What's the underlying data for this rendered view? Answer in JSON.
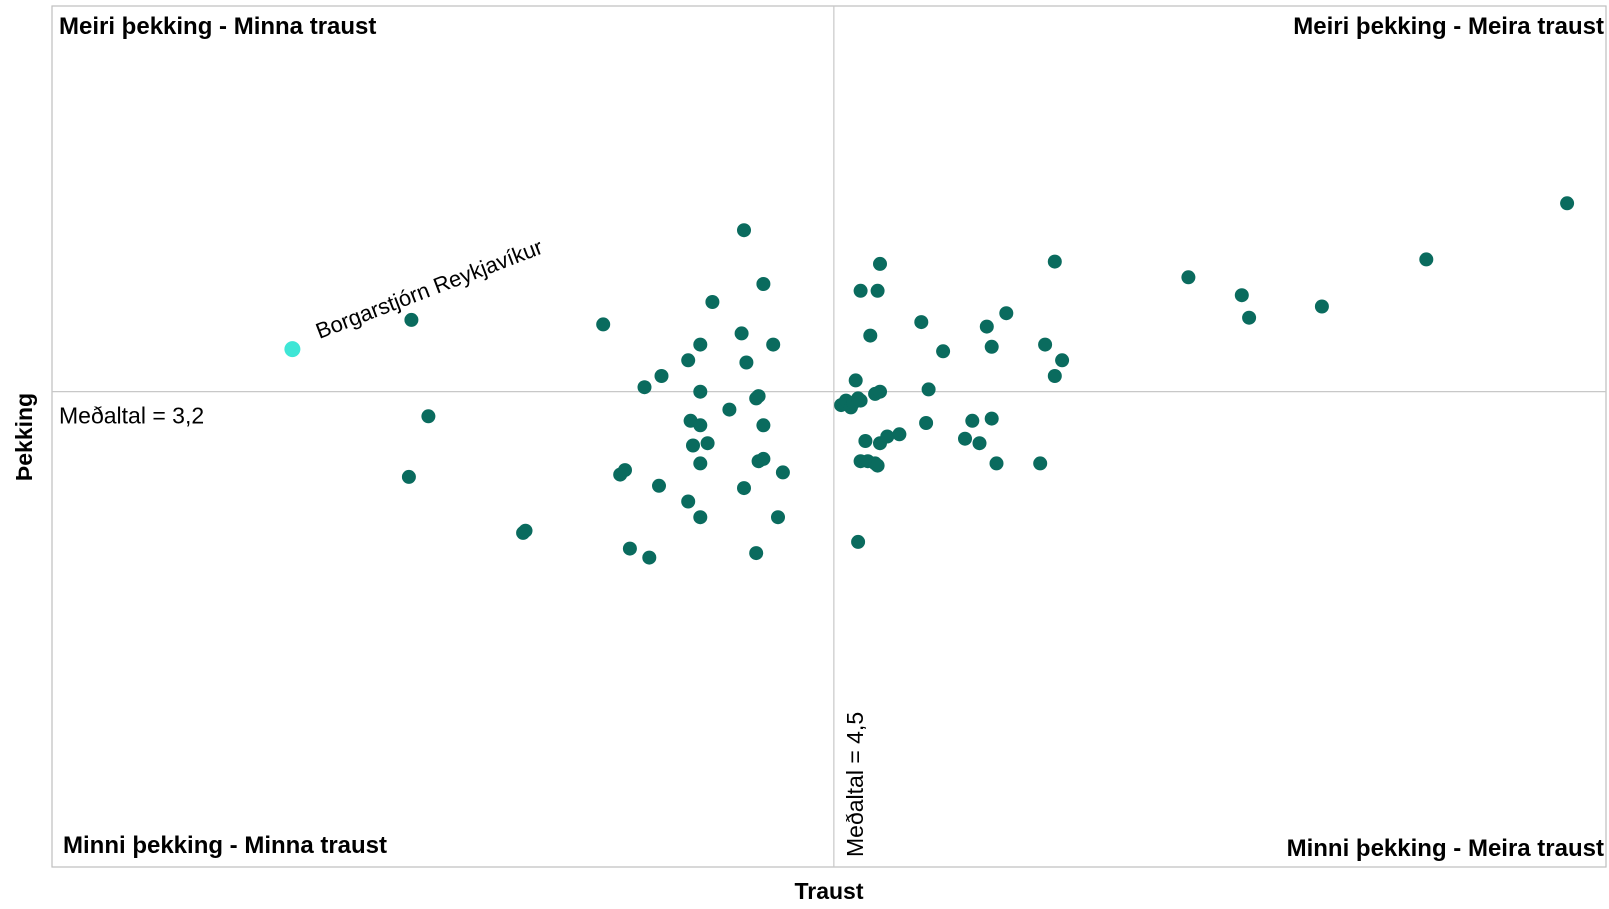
{
  "chart_data": {
    "type": "scatter",
    "xlabel": "Traust",
    "ylabel": "Þekking",
    "xlim": [
      1.28,
      7.68
    ],
    "ylim": [
      1.08,
      4.92
    ],
    "grid": false,
    "colors": {
      "default_point": "#0a6b5e",
      "highlight_point": "#3ee6d6",
      "reference_line": "#c8c8c8",
      "frame": "#bfbfbf"
    },
    "quadrants": {
      "top_left": "Meiri þekking - Minna traust",
      "top_right": "Meiri þekking - Meira traust",
      "bottom_left": "Minni þekking - Minna traust",
      "bottom_right": "Minni þekking - Meira traust"
    },
    "mean_x": {
      "value": 4.5,
      "label": "Meðaltal = 4,5"
    },
    "mean_y": {
      "value": 3.2,
      "label": "Meðaltal = 3,2"
    },
    "highlight": {
      "label": "Borgarstjórn Reykjavíkur",
      "x": 2.27,
      "y": 3.39
    },
    "points": [
      [
        2.76,
        3.52
      ],
      [
        2.83,
        3.09
      ],
      [
        2.75,
        2.82
      ],
      [
        3.22,
        2.57
      ],
      [
        3.23,
        2.58
      ],
      [
        3.55,
        3.5
      ],
      [
        3.62,
        2.83
      ],
      [
        3.64,
        2.85
      ],
      [
        3.66,
        2.5
      ],
      [
        3.74,
        2.46
      ],
      [
        3.72,
        3.22
      ],
      [
        3.79,
        3.27
      ],
      [
        3.78,
        2.78
      ],
      [
        3.9,
        3.34
      ],
      [
        3.91,
        3.07
      ],
      [
        3.9,
        2.71
      ],
      [
        3.92,
        2.96
      ],
      [
        3.95,
        3.2
      ],
      [
        3.95,
        3.41
      ],
      [
        3.95,
        3.05
      ],
      [
        3.95,
        2.88
      ],
      [
        3.95,
        2.64
      ],
      [
        3.98,
        2.97
      ],
      [
        4.07,
        3.12
      ],
      [
        4.12,
        3.46
      ],
      [
        4.14,
        3.33
      ],
      [
        4.13,
        2.77
      ],
      [
        4.18,
        3.17
      ],
      [
        4.19,
        3.18
      ],
      [
        4.19,
        2.89
      ],
      [
        4.21,
        3.05
      ],
      [
        4.21,
        2.9
      ],
      [
        4.18,
        2.48
      ],
      [
        4.25,
        3.41
      ],
      [
        4.27,
        2.64
      ],
      [
        4.29,
        2.84
      ],
      [
        4.21,
        3.68
      ],
      [
        4.0,
        3.6
      ],
      [
        4.13,
        3.92
      ],
      [
        4.53,
        3.14
      ],
      [
        4.55,
        3.16
      ],
      [
        4.57,
        3.13
      ],
      [
        4.58,
        3.15
      ],
      [
        4.6,
        3.17
      ],
      [
        4.59,
        3.25
      ],
      [
        4.61,
        3.16
      ],
      [
        4.67,
        3.19
      ],
      [
        4.69,
        3.2
      ],
      [
        4.63,
        2.98
      ],
      [
        4.69,
        2.97
      ],
      [
        4.72,
        3.0
      ],
      [
        4.77,
        3.01
      ],
      [
        4.61,
        2.89
      ],
      [
        4.64,
        2.89
      ],
      [
        4.67,
        2.88
      ],
      [
        4.68,
        2.87
      ],
      [
        4.6,
        2.53
      ],
      [
        4.65,
        3.45
      ],
      [
        4.61,
        3.65
      ],
      [
        4.68,
        3.65
      ],
      [
        4.69,
        3.77
      ],
      [
        4.86,
        3.51
      ],
      [
        4.89,
        3.21
      ],
      [
        4.88,
        3.06
      ],
      [
        4.95,
        3.38
      ],
      [
        5.04,
        2.99
      ],
      [
        5.07,
        3.07
      ],
      [
        5.1,
        2.97
      ],
      [
        5.15,
        3.08
      ],
      [
        5.13,
        3.49
      ],
      [
        5.15,
        3.4
      ],
      [
        5.17,
        2.88
      ],
      [
        5.21,
        3.55
      ],
      [
        5.35,
        2.88
      ],
      [
        5.37,
        3.41
      ],
      [
        5.41,
        3.27
      ],
      [
        5.44,
        3.34
      ],
      [
        5.41,
        3.78
      ],
      [
        5.96,
        3.71
      ],
      [
        6.18,
        3.63
      ],
      [
        6.21,
        3.53
      ],
      [
        6.51,
        3.58
      ],
      [
        6.94,
        3.79
      ],
      [
        7.52,
        4.04
      ]
    ]
  }
}
